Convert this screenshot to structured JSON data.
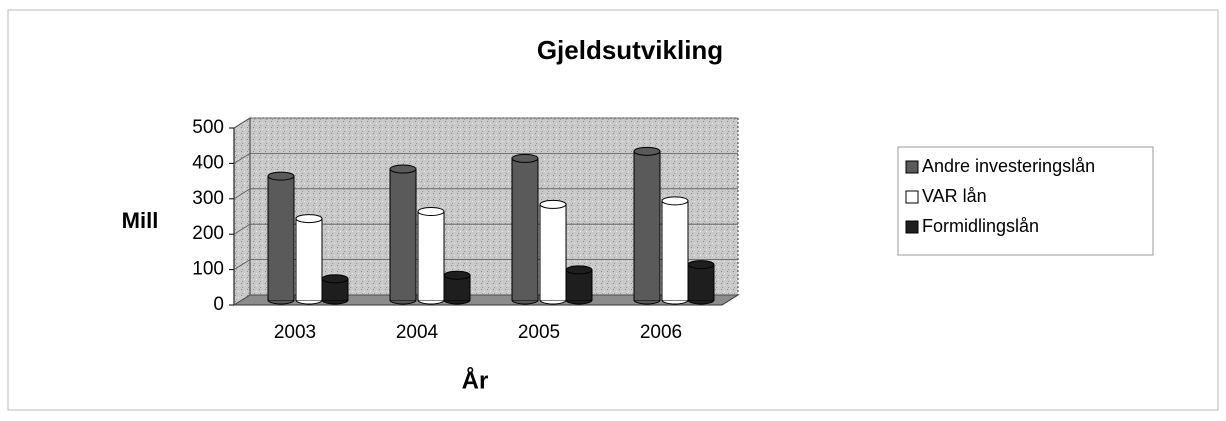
{
  "chart_data": {
    "type": "bar",
    "title": "Gjeldsutvikling",
    "x_label": "År",
    "y_label": "Mill",
    "categories": [
      "2003",
      "2004",
      "2005",
      "2006"
    ],
    "series": [
      {
        "name": "Andre investeringslån",
        "color": "#5a5a5a",
        "values": [
          350,
          370,
          400,
          420
        ]
      },
      {
        "name": "VAR lån",
        "color": "#ffffff",
        "values": [
          230,
          250,
          270,
          280
        ]
      },
      {
        "name": "Formidlingslån",
        "color": "#1e1e1e",
        "values": [
          60,
          70,
          85,
          100
        ]
      }
    ],
    "ylim": [
      0,
      500
    ],
    "yticks": [
      0,
      100,
      200,
      300,
      400,
      500
    ],
    "grid": true,
    "legend": "right"
  }
}
